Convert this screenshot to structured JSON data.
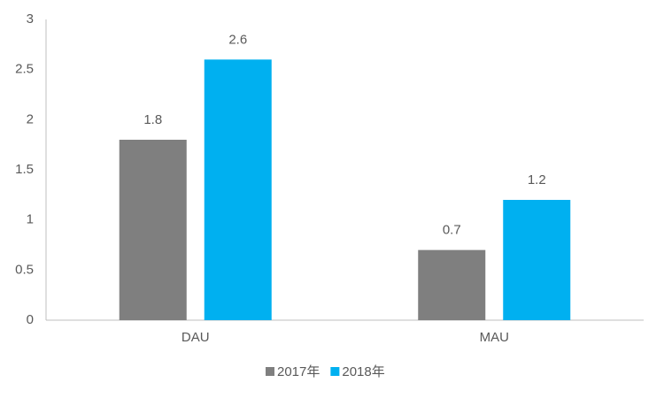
{
  "chart_data": {
    "type": "bar",
    "categories": [
      "DAU",
      "MAU"
    ],
    "series": [
      {
        "name": "2017年",
        "color": "#7f7f7f",
        "values": [
          1.8,
          0.7
        ]
      },
      {
        "name": "2018年",
        "color": "#00b0f0",
        "values": [
          2.6,
          1.2
        ]
      }
    ],
    "ylim": [
      0,
      3
    ],
    "yticks": [
      0,
      0.5,
      1,
      1.5,
      2,
      2.5,
      3
    ],
    "grid": false,
    "legend": "bottom"
  }
}
